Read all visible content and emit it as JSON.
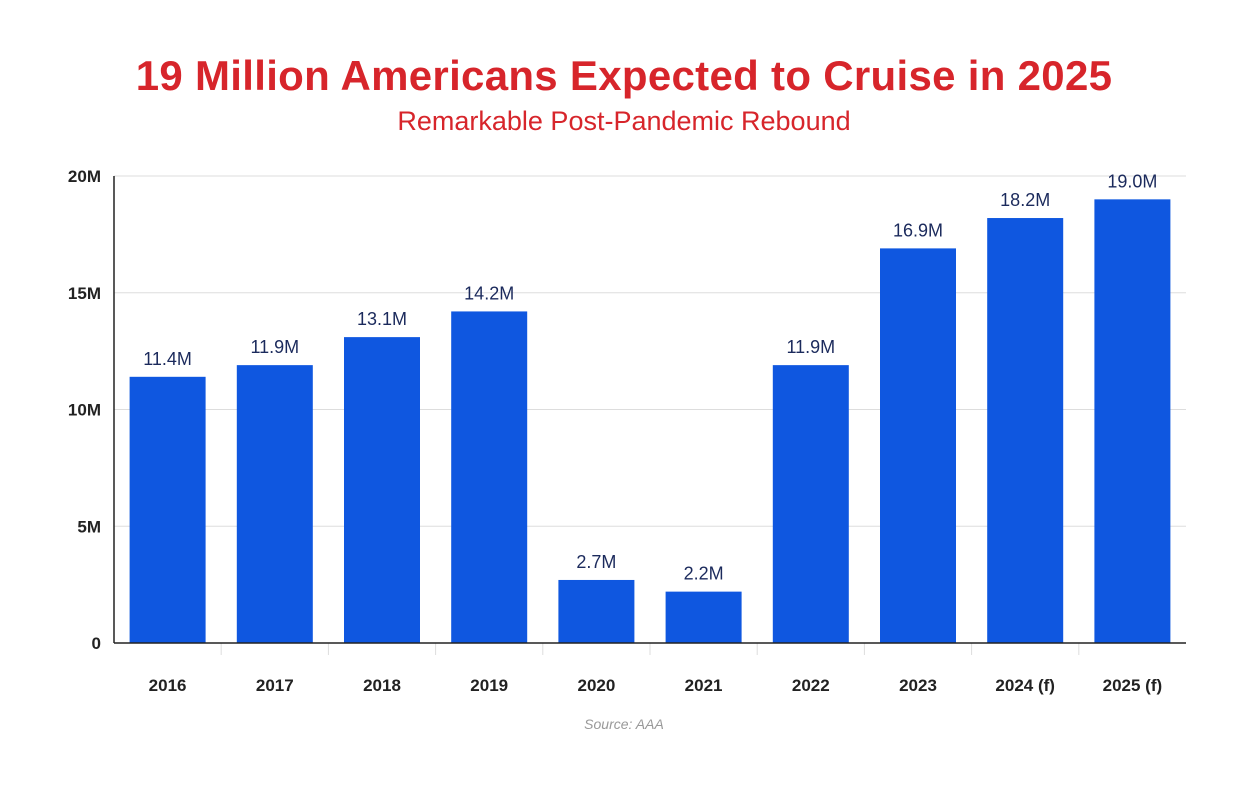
{
  "chart_data": {
    "type": "bar",
    "title": "19 Million Americans Expected to Cruise in 2025",
    "subtitle": "Remarkable Post-Pandemic Rebound",
    "source": "Source: AAA",
    "categories": [
      "2016",
      "2017",
      "2018",
      "2019",
      "2020",
      "2021",
      "2022",
      "2023",
      "2024 (f)",
      "2025 (f)"
    ],
    "values": [
      11.4,
      11.9,
      13.1,
      14.2,
      2.7,
      2.2,
      11.9,
      16.9,
      18.2,
      19.0
    ],
    "data_labels": [
      "11.4M",
      "11.9M",
      "13.1M",
      "14.2M",
      "2.7M",
      "2.2M",
      "11.9M",
      "16.9M",
      "18.2M",
      "19.0M"
    ],
    "yticks": [
      0,
      5,
      10,
      15,
      20
    ],
    "ytick_labels": [
      "0",
      "5M",
      "10M",
      "15M",
      "20M"
    ],
    "ylim": [
      0,
      20
    ],
    "xlabel": "",
    "ylabel": "",
    "grid": true,
    "colors": {
      "bar": "#0f57e0",
      "title": "#d7252b",
      "label": "#1b2a5c",
      "axis": "#222222",
      "grid": "#dddddd"
    }
  }
}
